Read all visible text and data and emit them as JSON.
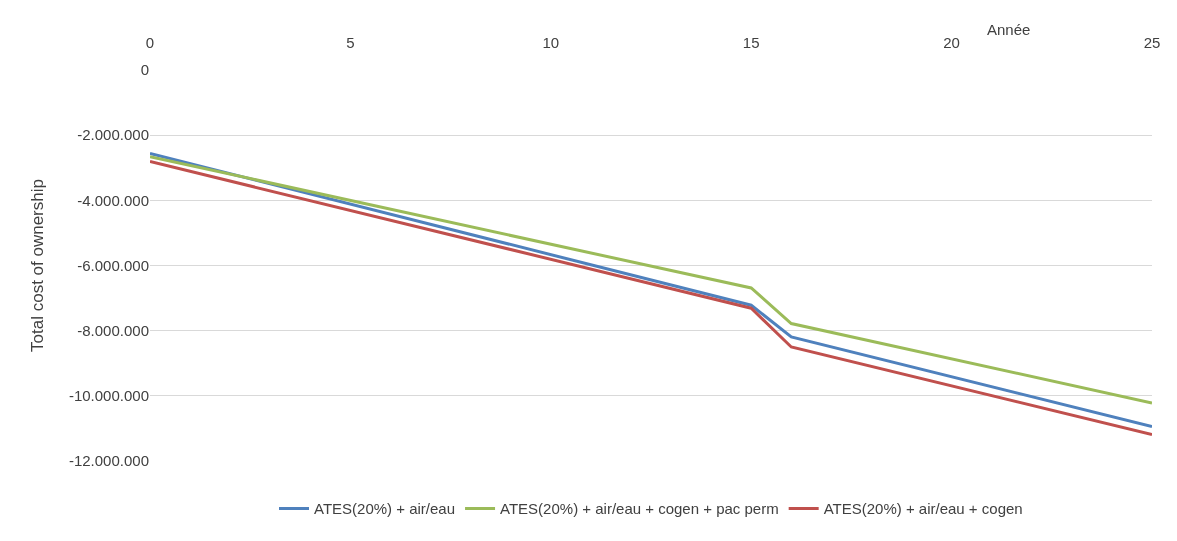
{
  "chart_data": {
    "type": "line",
    "xlabel": "Année",
    "ylabel": "Total cost of ownership",
    "x": [
      0,
      15,
      16,
      25
    ],
    "series": [
      {
        "name": "ATES(20%) + air/eau",
        "color": "#4f81bd",
        "values": [
          -2560000,
          -7220000,
          -8190000,
          -10940000
        ]
      },
      {
        "name": "ATES(20%) + air/eau + cogen + pac perm",
        "color": "#9bbb59",
        "values": [
          -2660000,
          -6690000,
          -7780000,
          -10220000
        ]
      },
      {
        "name": "ATES(20%) + air/eau + cogen",
        "color": "#c0504d",
        "values": [
          -2810000,
          -7310000,
          -8500000,
          -11190000
        ]
      }
    ],
    "xlim": [
      0,
      25
    ],
    "xticks": [
      0,
      5,
      10,
      15,
      20,
      25
    ],
    "ylim": [
      -12000000,
      0
    ],
    "yticks": [
      0,
      {
        "value": -2000000,
        "label": "-2.000.000"
      },
      {
        "value": -4000000,
        "label": "-4.000.000"
      },
      {
        "value": -6000000,
        "label": "-6.000.000"
      },
      {
        "value": -8000000,
        "label": "-8.000.000"
      },
      {
        "value": -10000000,
        "label": "-10.000.000"
      },
      {
        "value": -12000000,
        "label": "-12.000.000"
      }
    ],
    "grid": "y",
    "legend": "bottom",
    "marker": "none",
    "line_style": "solid"
  }
}
